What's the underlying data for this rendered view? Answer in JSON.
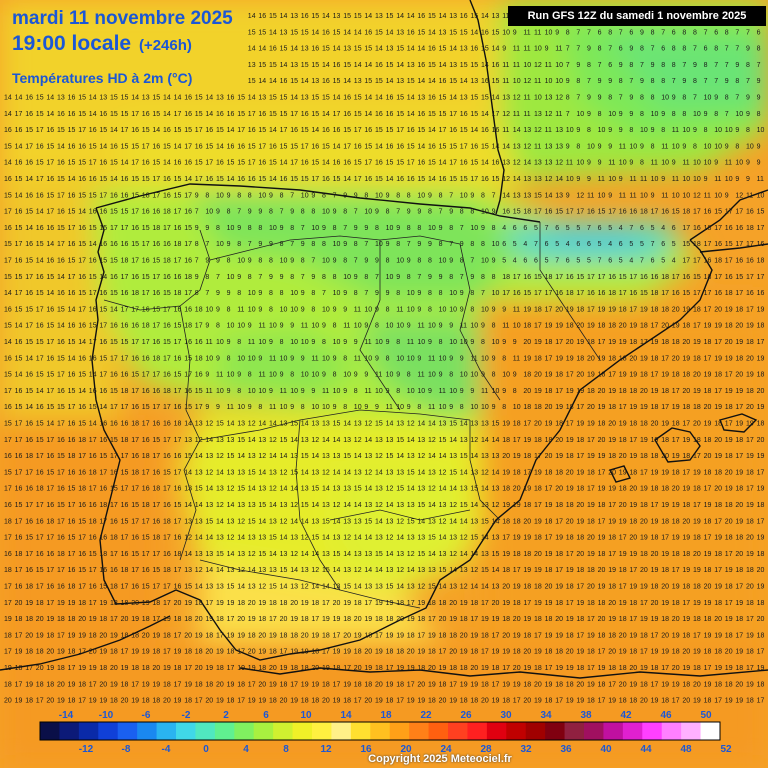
{
  "header": {
    "date_line": "mardi 11 novembre 2025",
    "time_line": "19:00 locale",
    "offset": "(+246h)",
    "variable": "Températures HD à 2m (°C)",
    "run": "Run GFS 12Z du samedi 1 novembre 2025"
  },
  "map": {
    "region": "Iberian Peninsula",
    "grid_values_visible": true,
    "unit": "°C",
    "temperature_range_on_map": [
      3,
      20
    ],
    "country_borders": true,
    "region_borders": true
  },
  "legend": {
    "labels_top": [
      "-14",
      "-10",
      "-6",
      "-2",
      "2",
      "6",
      "10",
      "14",
      "18",
      "22",
      "26",
      "30",
      "34",
      "38",
      "42",
      "46",
      "50"
    ],
    "labels_bottom": [
      "-12",
      "-8",
      "-4",
      "0",
      "4",
      "8",
      "12",
      "16",
      "20",
      "24",
      "28",
      "32",
      "36",
      "40",
      "44",
      "48",
      "52"
    ],
    "colors": [
      "#0a0f48",
      "#0c1a78",
      "#0a2aa8",
      "#1040d8",
      "#1a60f0",
      "#1a88f0",
      "#2ab4f0",
      "#40d8e8",
      "#50e8c0",
      "#60f090",
      "#80f060",
      "#a8f040",
      "#d0f030",
      "#f0f028",
      "#fff040",
      "#fff088",
      "#ffe030",
      "#ffc020",
      "#ffa018",
      "#ff8018",
      "#ff6010",
      "#ff4020",
      "#ff2020",
      "#e00010",
      "#c00000",
      "#a00000",
      "#800010",
      "#902040",
      "#a01060",
      "#c010a0",
      "#e020d0",
      "#ff40ff",
      "#ff80ff",
      "#ffb0ff",
      "#ffffff"
    ]
  },
  "copyright": "Copyright 2025 Meteociel.fr"
}
